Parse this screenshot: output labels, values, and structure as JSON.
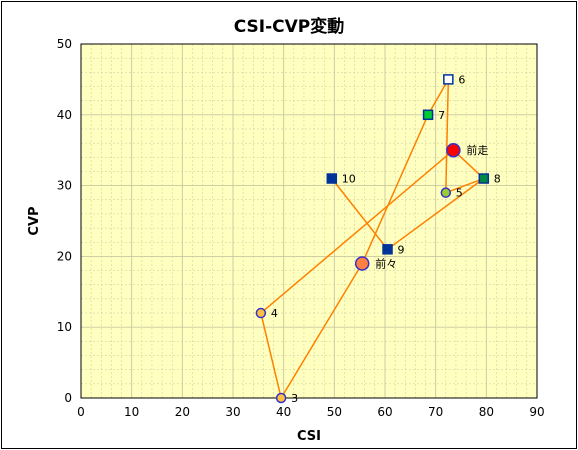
{
  "chart_data": {
    "type": "scatter",
    "title": "CSI-CVP変動",
    "xlabel": "CSI",
    "ylabel": "CVP",
    "xlim": [
      0,
      90
    ],
    "ylim": [
      0,
      50
    ],
    "x_ticks": [
      0,
      10,
      20,
      30,
      40,
      50,
      60,
      70,
      80,
      90
    ],
    "y_ticks": [
      0,
      10,
      20,
      30,
      40,
      50
    ],
    "grid": true,
    "colors": {
      "plot_background": "#ffffc0",
      "grid": "#c8c8a0",
      "line": "#ff8000",
      "yellow_circle": "#ffc040",
      "orange_circle": "#ff8040",
      "red_circle": "#ff0000",
      "lime_circle": "#9acd32",
      "navy_square": "#003399",
      "green_square": "#00cc33",
      "white_square": "#ffffff",
      "teal_square": "#008844"
    },
    "points": [
      {
        "label": "3",
        "x": 39.5,
        "y": 0,
        "marker": "circle",
        "size": "small",
        "color": "yellow_circle"
      },
      {
        "label": "4",
        "x": 35.5,
        "y": 12,
        "marker": "circle",
        "size": "small",
        "color": "yellow_circle"
      },
      {
        "label": "5",
        "x": 72,
        "y": 29,
        "marker": "circle",
        "size": "small",
        "color": "lime_circle"
      },
      {
        "label": "6",
        "x": 72.5,
        "y": 45,
        "marker": "square",
        "color": "white_square"
      },
      {
        "label": "7",
        "x": 68.5,
        "y": 40,
        "marker": "square",
        "color": "green_square"
      },
      {
        "label": "8",
        "x": 79.5,
        "y": 31,
        "marker": "square",
        "color": "teal_square"
      },
      {
        "label": "9",
        "x": 60.5,
        "y": 21,
        "marker": "square",
        "color": "navy_square"
      },
      {
        "label": "10",
        "x": 49.5,
        "y": 31,
        "marker": "square",
        "color": "navy_square"
      },
      {
        "label": "前々",
        "x": 55.5,
        "y": 19,
        "marker": "circle",
        "size": "large",
        "color": "orange_circle"
      },
      {
        "label": "前走",
        "x": 73.5,
        "y": 35,
        "marker": "circle",
        "size": "large",
        "color": "red_circle"
      }
    ],
    "path_order": [
      "3",
      "4",
      "前走",
      "8",
      "5",
      "6",
      "7",
      "前々",
      "3"
    ],
    "extra_segments": [
      [
        "10",
        "9"
      ],
      [
        "9",
        "8"
      ]
    ]
  }
}
